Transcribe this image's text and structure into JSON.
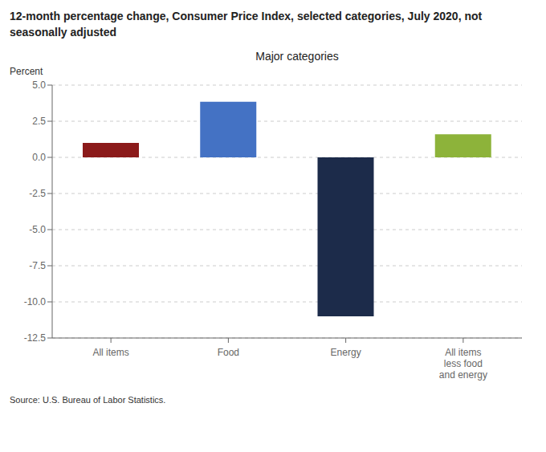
{
  "chart_data": {
    "type": "bar",
    "title": "12-month percentage change, Consumer Price Index, selected categories, July 2020, not\nseasonally adjusted",
    "subtitle": "Major categories",
    "ylabel": "Percent",
    "categories": [
      "All items",
      "Food",
      "Energy",
      "All items\nless food\nand energy"
    ],
    "values": [
      1.0,
      3.85,
      -11.0,
      1.6
    ],
    "colors": [
      "#8B1A1A",
      "#4472C4",
      "#1C2B4A",
      "#8DB33A"
    ],
    "ylim": [
      -12.5,
      5.0
    ],
    "yticks": [
      -12.5,
      {
        "value": -10,
        "label": "-10.0"
      },
      -7.5,
      {
        "value": -5,
        "label": "-5.0"
      },
      -2.5,
      {
        "value": 0,
        "label": "0.0"
      },
      2.5,
      {
        "value": 5,
        "label": "5.0"
      }
    ],
    "grid": true,
    "annotations": [
      "Source: U.S. Bureau of Labor Statistics."
    ]
  }
}
